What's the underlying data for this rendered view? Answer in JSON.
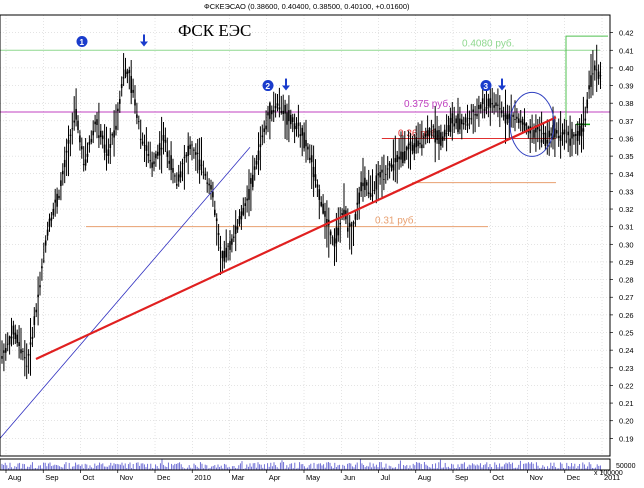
{
  "chart_data": {
    "type": "candlestick",
    "header": "ФСКЕЭСАО (0.38600, 0.40400, 0.38500, 0.40100, +0.01600)",
    "title": "ФСК ЕЭС",
    "y_axis": {
      "min": 0.18,
      "max": 0.43,
      "side": "right",
      "ticks": [
        "0.19",
        "0.20",
        "0.21",
        "0.22",
        "0.23",
        "0.24",
        "0.25",
        "0.26",
        "0.27",
        "0.28",
        "0.29",
        "0.30",
        "0.31",
        "0.32",
        "0.33",
        "0.34",
        "0.35",
        "0.36",
        "0.37",
        "0.38",
        "0.39",
        "0.40",
        "0.41",
        "0.42"
      ]
    },
    "x_axis": {
      "ticks": [
        "Aug",
        "Sep",
        "Oct",
        "Nov",
        "Dec",
        "2010",
        "Mar",
        "Apr",
        "May",
        "Jun",
        "Jul",
        "Aug",
        "Sep",
        "Oct",
        "Nov",
        "Dec",
        "2011"
      ]
    },
    "price_path": [
      [
        0,
        0.235
      ],
      [
        14,
        0.25
      ],
      [
        28,
        0.232
      ],
      [
        38,
        0.27
      ],
      [
        48,
        0.31
      ],
      [
        60,
        0.33
      ],
      [
        70,
        0.36
      ],
      [
        76,
        0.375
      ],
      [
        84,
        0.345
      ],
      [
        96,
        0.37
      ],
      [
        108,
        0.35
      ],
      [
        118,
        0.375
      ],
      [
        124,
        0.4
      ],
      [
        132,
        0.39
      ],
      [
        142,
        0.36
      ],
      [
        152,
        0.345
      ],
      [
        164,
        0.36
      ],
      [
        176,
        0.335
      ],
      [
        190,
        0.355
      ],
      [
        202,
        0.345
      ],
      [
        212,
        0.33
      ],
      [
        222,
        0.29
      ],
      [
        234,
        0.305
      ],
      [
        244,
        0.32
      ],
      [
        252,
        0.335
      ],
      [
        262,
        0.36
      ],
      [
        270,
        0.375
      ],
      [
        278,
        0.38
      ],
      [
        288,
        0.372
      ],
      [
        300,
        0.365
      ],
      [
        310,
        0.35
      ],
      [
        318,
        0.33
      ],
      [
        326,
        0.315
      ],
      [
        334,
        0.3
      ],
      [
        344,
        0.32
      ],
      [
        352,
        0.305
      ],
      [
        362,
        0.335
      ],
      [
        372,
        0.33
      ],
      [
        382,
        0.34
      ],
      [
        392,
        0.345
      ],
      [
        402,
        0.35
      ],
      [
        412,
        0.355
      ],
      [
        422,
        0.36
      ],
      [
        432,
        0.365
      ],
      [
        442,
        0.36
      ],
      [
        452,
        0.37
      ],
      [
        462,
        0.368
      ],
      [
        472,
        0.372
      ],
      [
        482,
        0.378
      ],
      [
        492,
        0.38
      ],
      [
        502,
        0.375
      ],
      [
        512,
        0.372
      ],
      [
        522,
        0.37
      ],
      [
        530,
        0.362
      ],
      [
        538,
        0.365
      ],
      [
        546,
        0.36
      ],
      [
        556,
        0.365
      ],
      [
        566,
        0.362
      ],
      [
        576,
        0.36
      ],
      [
        582,
        0.365
      ],
      [
        586,
        0.375
      ],
      [
        590,
        0.39
      ],
      [
        594,
        0.402
      ],
      [
        598,
        0.395
      ],
      [
        602,
        0.4
      ]
    ],
    "levels": [
      {
        "label": "0.4080 руб.",
        "value": 0.41,
        "color": "#8fd88f"
      },
      {
        "label": "0.375 руб.",
        "value": 0.375,
        "color": "#c040c0"
      },
      {
        "label": "0.36 руб.",
        "value": 0.36,
        "color": "#e03030"
      },
      {
        "label": "",
        "value": 0.335,
        "color": "#e8a070"
      },
      {
        "label": "0.31 руб.",
        "value": 0.31,
        "color": "#e8a070"
      }
    ],
    "trendlines": [
      {
        "name": "thin-blue-trendline",
        "color": "#3030c0",
        "from": [
          0,
          0.19
        ],
        "to": [
          250,
          0.355
        ],
        "width": 0.8
      },
      {
        "name": "red-support-trendline",
        "color": "#e02020",
        "from": [
          36,
          0.235
        ],
        "to": [
          556,
          0.372
        ],
        "width": 2.2
      }
    ],
    "markers": [
      {
        "label": "1",
        "x_day": 82,
        "value": 0.415
      },
      {
        "label": "2",
        "x_day": 268,
        "value": 0.39
      },
      {
        "label": "3",
        "x_day": 486,
        "value": 0.39
      }
    ],
    "arrows": [
      {
        "x_day": 144,
        "value": 0.415
      },
      {
        "x_day": 286,
        "value": 0.39
      },
      {
        "x_day": 502,
        "value": 0.39
      }
    ],
    "volume_axis": {
      "label_top": "50000",
      "label_bottom": "x 100000"
    }
  },
  "colors": {
    "candle": "#000000",
    "grid": "#c8c8c8",
    "ellipse": "#3040c0",
    "volume": "#6060d0",
    "marker_fill": "#1a3ccc",
    "arrow": "#1a3ccc"
  }
}
